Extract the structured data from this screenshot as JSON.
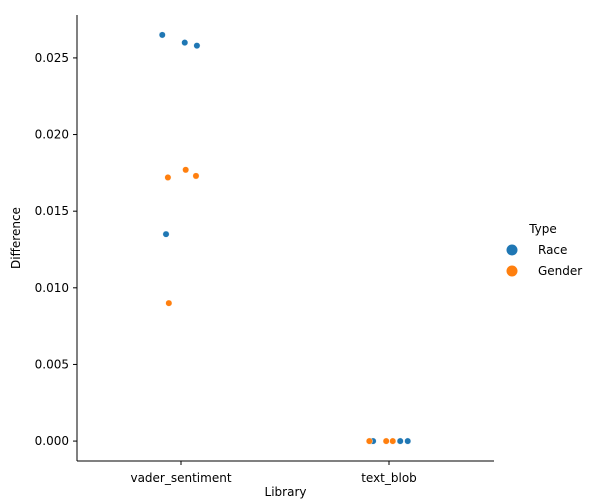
{
  "chart_data": {
    "type": "scatter",
    "subtype": "strip",
    "xlabel": "Library",
    "ylabel": "Difference",
    "categories": [
      "vader_sentiment",
      "text_blob"
    ],
    "ylim": [
      -0.0013,
      0.0278
    ],
    "yticks": [
      0.0,
      0.005,
      0.01,
      0.015,
      0.02,
      0.025
    ],
    "ytick_labels": [
      "0.000",
      "0.005",
      "0.010",
      "0.015",
      "0.020",
      "0.025"
    ],
    "grid": false,
    "legend": {
      "title": "Type",
      "placement": "right"
    },
    "series": [
      {
        "name": "Race",
        "color": "#1f77b4",
        "points": [
          {
            "category": "vader_sentiment",
            "jitter": -0.2,
            "y": 0.0265
          },
          {
            "category": "vader_sentiment",
            "jitter": 0.04,
            "y": 0.026
          },
          {
            "category": "vader_sentiment",
            "jitter": 0.17,
            "y": 0.0258
          },
          {
            "category": "vader_sentiment",
            "jitter": -0.16,
            "y": 0.0135
          },
          {
            "category": "text_blob",
            "jitter": -0.2,
            "y": 0.0
          },
          {
            "category": "text_blob",
            "jitter": -0.17,
            "y": 0.0
          },
          {
            "category": "text_blob",
            "jitter": 0.12,
            "y": 0.0
          },
          {
            "category": "text_blob",
            "jitter": 0.2,
            "y": 0.0
          }
        ]
      },
      {
        "name": "Gender",
        "color": "#ff7f0e",
        "points": [
          {
            "category": "vader_sentiment",
            "jitter": -0.14,
            "y": 0.0172
          },
          {
            "category": "vader_sentiment",
            "jitter": 0.05,
            "y": 0.0177
          },
          {
            "category": "vader_sentiment",
            "jitter": 0.16,
            "y": 0.0173
          },
          {
            "category": "vader_sentiment",
            "jitter": -0.13,
            "y": 0.009
          },
          {
            "category": "text_blob",
            "jitter": -0.21,
            "y": 0.0
          },
          {
            "category": "text_blob",
            "jitter": -0.03,
            "y": 0.0
          },
          {
            "category": "text_blob",
            "jitter": 0.04,
            "y": 0.0
          }
        ]
      }
    ]
  }
}
